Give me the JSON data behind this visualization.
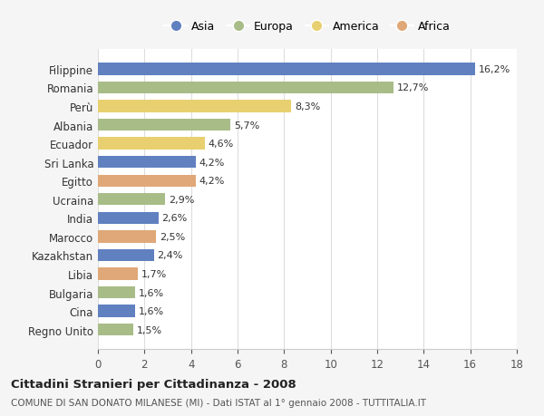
{
  "countries": [
    "Filippine",
    "Romania",
    "Perù",
    "Albania",
    "Ecuador",
    "Sri Lanka",
    "Egitto",
    "Ucraina",
    "India",
    "Marocco",
    "Kazakhstan",
    "Libia",
    "Bulgaria",
    "Cina",
    "Regno Unito"
  ],
  "values": [
    16.2,
    12.7,
    8.3,
    5.7,
    4.6,
    4.2,
    4.2,
    2.9,
    2.6,
    2.5,
    2.4,
    1.7,
    1.6,
    1.6,
    1.5
  ],
  "labels": [
    "16,2%",
    "12,7%",
    "8,3%",
    "5,7%",
    "4,6%",
    "4,2%",
    "4,2%",
    "2,9%",
    "2,6%",
    "2,5%",
    "2,4%",
    "1,7%",
    "1,6%",
    "1,6%",
    "1,5%"
  ],
  "continents": [
    "Asia",
    "Europa",
    "America",
    "Europa",
    "America",
    "Asia",
    "Africa",
    "Europa",
    "Asia",
    "Africa",
    "Asia",
    "Africa",
    "Europa",
    "Asia",
    "Europa"
  ],
  "colors": {
    "Asia": "#6080c0",
    "Europa": "#a8bc88",
    "America": "#e8d070",
    "Africa": "#e0a878"
  },
  "legend_order": [
    "Asia",
    "Europa",
    "America",
    "Africa"
  ],
  "title": "Cittadini Stranieri per Cittadinanza - 2008",
  "subtitle": "COMUNE DI SAN DONATO MILANESE (MI) - Dati ISTAT al 1° gennaio 2008 - TUTTITALIA.IT",
  "xlim": [
    0,
    18
  ],
  "xticks": [
    0,
    2,
    4,
    6,
    8,
    10,
    12,
    14,
    16,
    18
  ],
  "background_color": "#f5f5f5",
  "plot_background": "#ffffff",
  "grid_color": "#dddddd"
}
